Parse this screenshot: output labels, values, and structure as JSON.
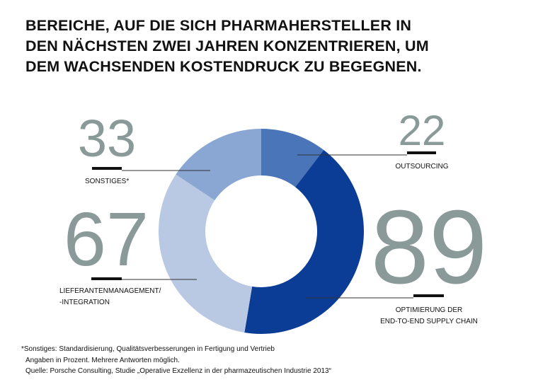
{
  "title_lines": [
    "BEREICHE, AUF DIE SICH PHARMAHERSTELLER IN",
    "DEN NÄCHSTEN ZWEI JAHREN KONZENTRIEREN, UM",
    "DEM WACHSENDEN KOSTENDRUCK ZU BEGEGNEN."
  ],
  "chart_data": {
    "type": "pie",
    "variant": "donut",
    "unit": "Prozent",
    "slices": [
      {
        "label": "OUTSOURCING",
        "value": 22,
        "color": "#4a75b9"
      },
      {
        "label": "OPTIMIERUNG DER END-TO-END SUPPLY CHAIN",
        "label_lines": [
          "OPTIMIERUNG DER",
          "END-TO-END SUPPLY CHAIN"
        ],
        "value": 89,
        "color": "#0b3d96"
      },
      {
        "label": "LIEFERANTENMANAGEMENT/ -INTEGRATION",
        "label_lines": [
          "LIEFERANTENMANAGEMENT/",
          "-INTEGRATION"
        ],
        "value": 67,
        "color": "#b9c9e3"
      },
      {
        "label": "SONSTIGES*",
        "value": 33,
        "color": "#8aa6d3"
      }
    ]
  },
  "value_color": "#8a9a98",
  "footnote": {
    "line1": "*Sonstiges: Standardisierung, Qualitätsverbesserungen in Fertigung und Vertrieb",
    "line2": "Angaben in Prozent. Mehrere Antworten möglich.",
    "line3": "Quelle: Porsche Consulting, Studie „Operative Exzellenz in der pharmazeutischen Industrie 2013“"
  }
}
